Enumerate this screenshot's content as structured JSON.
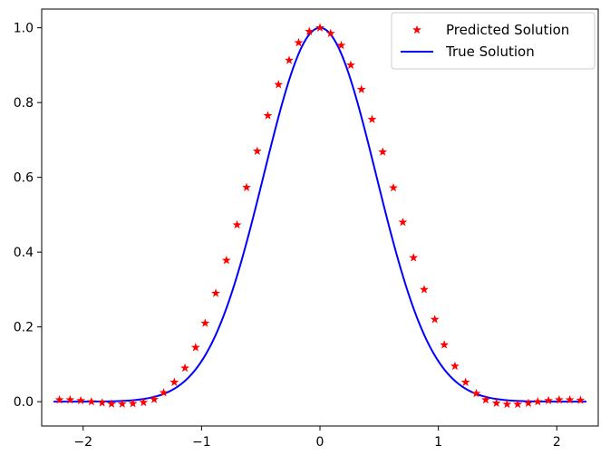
{
  "chart_data": {
    "type": "line",
    "xlim": [
      -2.35,
      2.35
    ],
    "ylim": [
      -0.065,
      1.05
    ],
    "xticks": [
      -2,
      -1,
      0,
      1,
      2
    ],
    "xtick_labels": [
      "−2",
      "−1",
      "0",
      "1",
      "2"
    ],
    "yticks": [
      0.0,
      0.2,
      0.4,
      0.6,
      0.8,
      1.0
    ],
    "ytick_labels": [
      "0.0",
      "0.2",
      "0.4",
      "0.6",
      "0.8",
      "1.0"
    ],
    "grid": false,
    "legend_position": "top-right",
    "series": [
      {
        "name": "Predicted Solution",
        "marker": "star",
        "color": "#ff0000",
        "x": [
          -2.2,
          -2.11,
          -2.02,
          -1.93,
          -1.84,
          -1.76,
          -1.67,
          -1.58,
          -1.49,
          -1.4,
          -1.32,
          -1.23,
          -1.14,
          -1.05,
          -0.97,
          -0.88,
          -0.79,
          -0.7,
          -0.62,
          -0.53,
          -0.44,
          -0.35,
          -0.26,
          -0.18,
          -0.09,
          0.0,
          0.09,
          0.18,
          0.26,
          0.35,
          0.44,
          0.53,
          0.62,
          0.7,
          0.79,
          0.88,
          0.97,
          1.05,
          1.14,
          1.23,
          1.32,
          1.4,
          1.49,
          1.58,
          1.67,
          1.76,
          1.84,
          1.93,
          2.02,
          2.11,
          2.2
        ],
        "y": [
          0.005,
          0.005,
          0.003,
          0.0,
          -0.003,
          -0.006,
          -0.006,
          -0.005,
          -0.002,
          0.006,
          0.024,
          0.052,
          0.09,
          0.145,
          0.21,
          0.29,
          0.378,
          0.473,
          0.573,
          0.67,
          0.765,
          0.848,
          0.913,
          0.96,
          0.99,
          1.0,
          0.985,
          0.953,
          0.9,
          0.835,
          0.755,
          0.668,
          0.572,
          0.48,
          0.385,
          0.3,
          0.22,
          0.152,
          0.095,
          0.052,
          0.022,
          0.005,
          -0.004,
          -0.007,
          -0.007,
          -0.004,
          0.0,
          0.003,
          0.005,
          0.005,
          0.004
        ]
      },
      {
        "name": "True Solution",
        "color": "#0000ff",
        "function": "exp(-x^2/0.45)",
        "x_range": [
          -2.25,
          2.25
        ]
      }
    ]
  }
}
